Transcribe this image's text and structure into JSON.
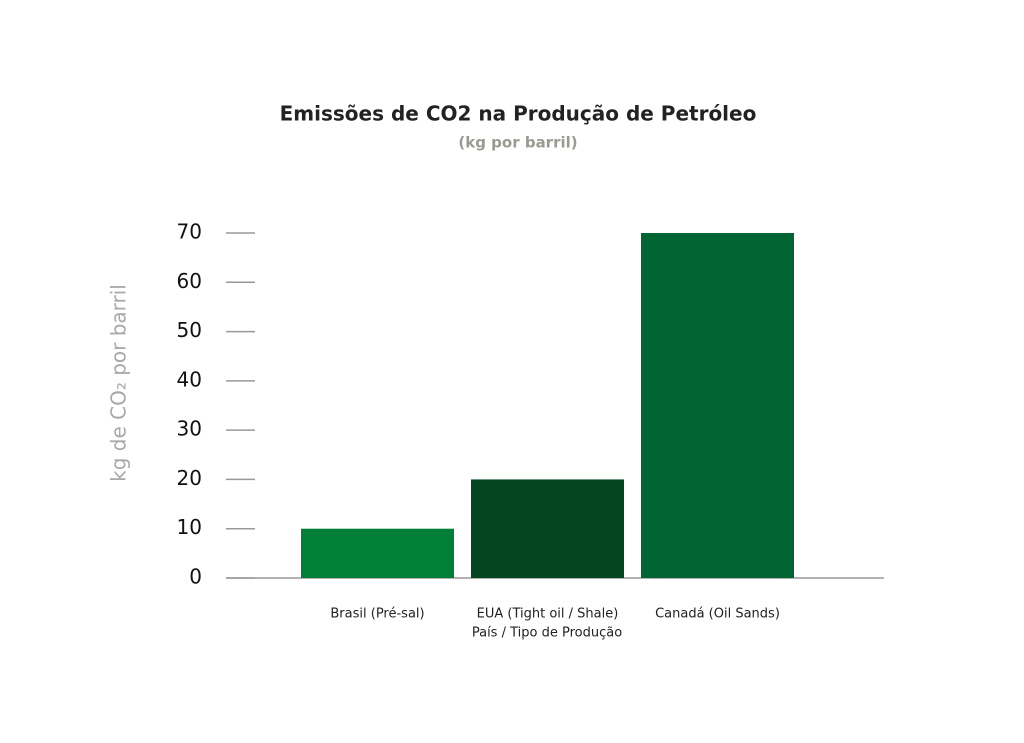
{
  "chart_data": {
    "type": "bar",
    "title": "Emissões de CO2 na Produção de Petróleo",
    "subtitle": "(kg por barril)",
    "y_label": "kg de CO₂ por barril",
    "x_label": "País / Tipo de Produção",
    "categories": [
      "Brasil (Pré-sal)",
      "EUA (Tight oil / Shale)",
      "Canadá (Oil Sands)"
    ],
    "values": [
      10,
      20,
      70
    ],
    "colors": [
      "#008037",
      "#034620",
      "#006532"
    ],
    "ylim": [
      0,
      70
    ],
    "yticks": [
      0,
      10,
      20,
      30,
      40,
      50,
      60,
      70
    ]
  }
}
